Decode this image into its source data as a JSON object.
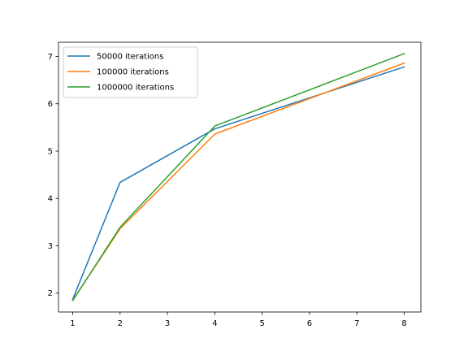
{
  "chart_data": {
    "type": "line",
    "title": "",
    "xlabel": "",
    "ylabel": "",
    "xlim": [
      0.7,
      8.35
    ],
    "ylim": [
      1.6,
      7.3
    ],
    "xticks": [
      1,
      2,
      3,
      4,
      5,
      6,
      7,
      8
    ],
    "yticks": [
      2,
      3,
      4,
      5,
      6,
      7
    ],
    "grid": false,
    "legend": {
      "position": "upper left"
    },
    "series": [
      {
        "name": "50000 iterations",
        "color": "#1f77b4",
        "x": [
          1,
          2,
          4,
          8
        ],
        "y": [
          1.87,
          4.34,
          5.47,
          6.78
        ]
      },
      {
        "name": "100000 iterations",
        "color": "#ff7f0e",
        "x": [
          1,
          2,
          4,
          8
        ],
        "y": [
          1.85,
          3.36,
          5.36,
          6.86
        ]
      },
      {
        "name": "1000000 iterations",
        "color": "#2ca02c",
        "x": [
          1,
          2,
          4,
          8
        ],
        "y": [
          1.84,
          3.39,
          5.53,
          7.06
        ]
      }
    ]
  }
}
